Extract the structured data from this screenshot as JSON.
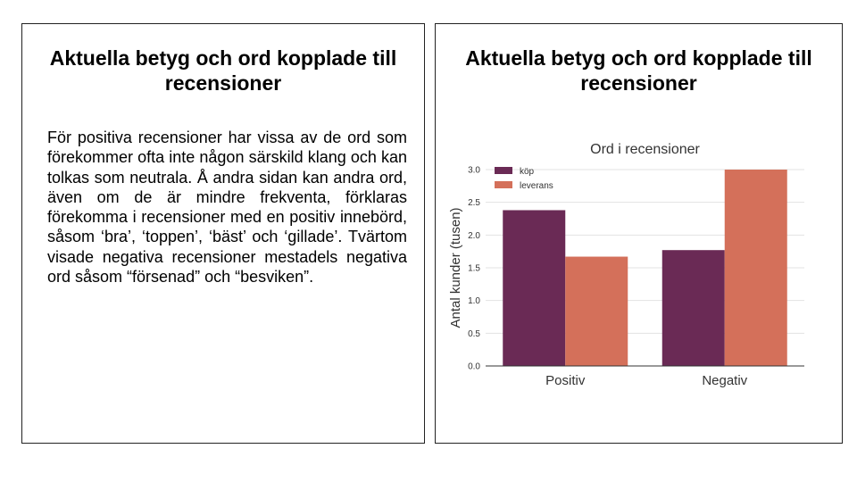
{
  "left_panel": {
    "title": "Aktuella betyg och ord kopplade till recensioner",
    "text": "För positiva recensioner har vissa av de ord som förekommer ofta inte någon särskild klang och kan tolkas som neutrala. Å andra sidan kan andra ord, även om de är mindre frekventa, förklaras förekomma i recensioner med en positiv innebörd, såsom ‘bra’, ‘toppen’, ‘bäst’ och ‘gillade’. Tvärtom visade negativa recensioner mestadels negativa ord såsom “försenad” och “besviken”."
  },
  "right_panel": {
    "title": "Aktuella betyg och ord kopplade till recensioner"
  },
  "chart_data": {
    "type": "bar",
    "title": "Ord i recensioner",
    "xlabel": "",
    "ylabel": "Antal kunder (tusen)",
    "categories": [
      "Positiv",
      "Negativ"
    ],
    "series": [
      {
        "name": "köp",
        "values": [
          2.38,
          1.77
        ],
        "color": "#6a2a55"
      },
      {
        "name": "leverans",
        "values": [
          1.67,
          3.0
        ],
        "color": "#d4705a"
      }
    ],
    "ylim": [
      0,
      3.0
    ],
    "yticks": [
      "0.0",
      "0.5",
      "1.0",
      "1.5",
      "2.0",
      "2.5",
      "3.0"
    ],
    "grid": true,
    "legend": "top-left"
  }
}
